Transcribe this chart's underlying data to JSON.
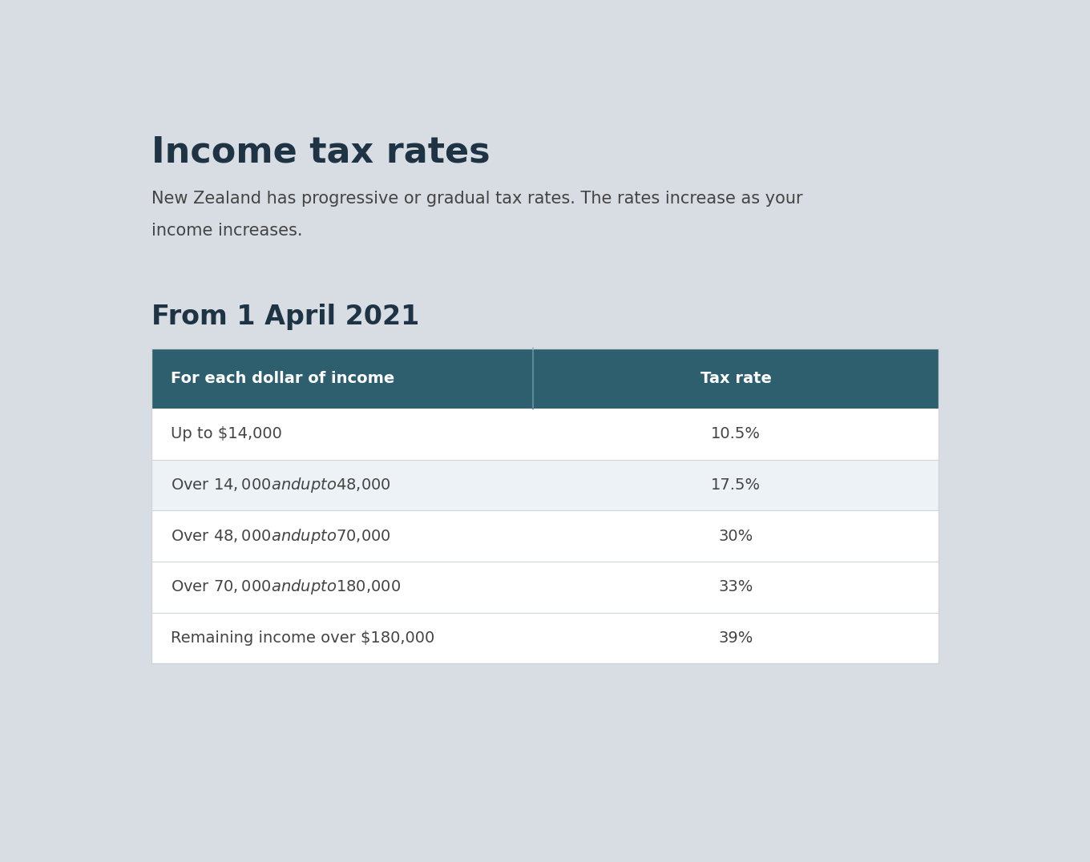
{
  "page_bg": "#d8dde3",
  "card_bg": "#ffffff",
  "title": "Income tax rates",
  "title_color": "#1e3343",
  "title_fontsize": 32,
  "subtitle_line1": "New Zealand has progressive or gradual tax rates. The rates increase as your",
  "subtitle_line2": "income increases.",
  "subtitle_color": "#444444",
  "subtitle_fontsize": 15,
  "section_title": "From 1 April 2021",
  "section_title_color": "#1e3343",
  "section_title_fontsize": 24,
  "header_bg": "#2d5f6e",
  "header_text_color": "#ffffff",
  "header_col1": "For each dollar of income",
  "header_col2": "Tax rate",
  "header_fontsize": 14,
  "col_split": 0.485,
  "rows": [
    {
      "income": "Up to $14,000",
      "rate": "10.5%",
      "bg": "#ffffff"
    },
    {
      "income": "Over $14,000 and up to $48,000",
      "rate": "17.5%",
      "bg": "#edf2f7"
    },
    {
      "income": "Over $48,000 and up to $70,000",
      "rate": "30%",
      "bg": "#ffffff"
    },
    {
      "income": "Over $70,000 and up to $180,000",
      "rate": "33%",
      "bg": "#ffffff"
    },
    {
      "income": "Remaining income over $180,000",
      "rate": "39%",
      "bg": "#ffffff"
    }
  ],
  "row_text_color": "#444444",
  "row_fontsize": 14,
  "divider_color": "#d0d5da",
  "table_border_color": "#d0d5da"
}
